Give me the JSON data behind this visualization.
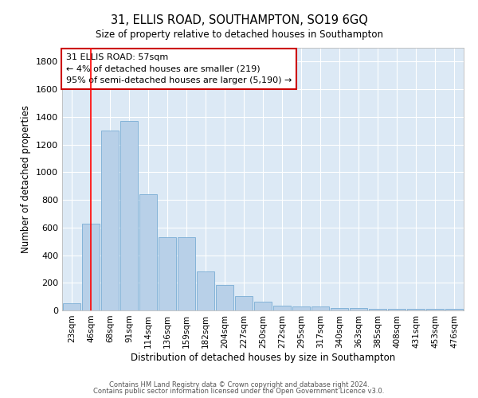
{
  "title1": "31, ELLIS ROAD, SOUTHAMPTON, SO19 6GQ",
  "title2": "Size of property relative to detached houses in Southampton",
  "xlabel": "Distribution of detached houses by size in Southampton",
  "ylabel": "Number of detached properties",
  "bar_color": "#b8d0e8",
  "bar_edge_color": "#7aadd4",
  "background_color": "#dce9f5",
  "categories": [
    "23sqm",
    "46sqm",
    "68sqm",
    "91sqm",
    "114sqm",
    "136sqm",
    "159sqm",
    "182sqm",
    "204sqm",
    "227sqm",
    "250sqm",
    "272sqm",
    "295sqm",
    "317sqm",
    "340sqm",
    "363sqm",
    "385sqm",
    "408sqm",
    "431sqm",
    "453sqm",
    "476sqm"
  ],
  "values": [
    50,
    630,
    1300,
    1370,
    840,
    530,
    530,
    280,
    185,
    105,
    65,
    35,
    30,
    28,
    20,
    15,
    10,
    10,
    10,
    10,
    10
  ],
  "ylim": [
    0,
    1900
  ],
  "yticks": [
    0,
    200,
    400,
    600,
    800,
    1000,
    1200,
    1400,
    1600,
    1800
  ],
  "vline_x_index": 1.0,
  "annotation_text": "31 ELLIS ROAD: 57sqm\n← 4% of detached houses are smaller (219)\n95% of semi-detached houses are larger (5,190) →",
  "annotation_box_color": "#ffffff",
  "annotation_box_edge": "#cc0000",
  "footer1": "Contains HM Land Registry data © Crown copyright and database right 2024.",
  "footer2": "Contains public sector information licensed under the Open Government Licence v3.0."
}
